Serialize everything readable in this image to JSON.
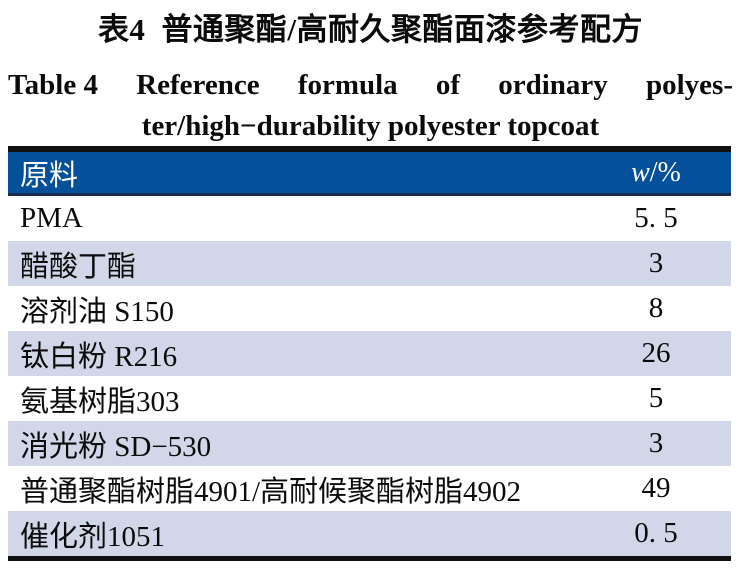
{
  "caption": {
    "zh": {
      "label": "表4",
      "text": "普通聚酯/高耐久聚酯面漆参考配方"
    },
    "en": {
      "line1_words": [
        "Table 4",
        "Reference",
        "formula",
        "of",
        "ordinary",
        "polyes-"
      ],
      "line2": "ter/high−durability polyester topcoat"
    }
  },
  "table": {
    "header": {
      "material_col": "原料",
      "weight_symbol": "w",
      "weight_unit": "/%"
    },
    "rows": [
      {
        "material": "PMA",
        "w_percent": "5. 5"
      },
      {
        "material": "醋酸丁酯",
        "w_percent": "3"
      },
      {
        "material": "溶剂油 S150",
        "w_percent": "8"
      },
      {
        "material": "钛白粉 R216",
        "w_percent": "26"
      },
      {
        "material": "氨基树脂303",
        "w_percent": "5"
      },
      {
        "material": "消光粉 SD−530",
        "w_percent": "3"
      },
      {
        "material": "普通聚酯树脂4901/高耐候聚酯树脂4902",
        "w_percent": "49"
      },
      {
        "material": "催化剂1051",
        "w_percent": "0. 5"
      }
    ],
    "colors": {
      "header_bg": "#04509B",
      "header_text": "#FFFFFF",
      "alt_row_bg": "#D1D7E9",
      "rule_black": "#101010",
      "header_border": "#1C2C4E"
    }
  }
}
